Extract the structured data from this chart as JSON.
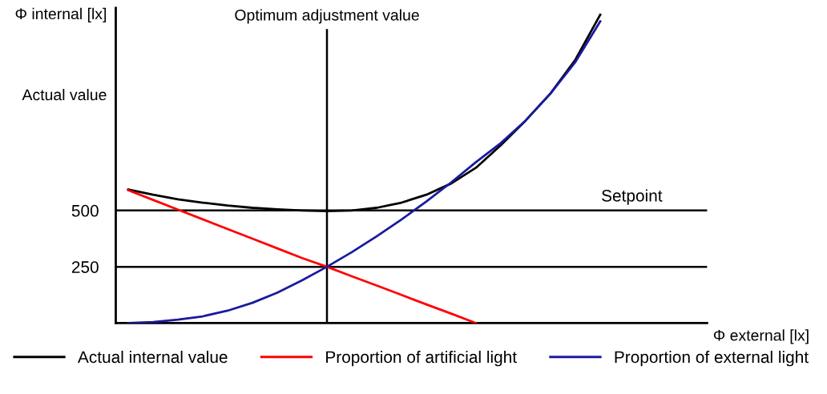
{
  "chart_data": {
    "type": "line",
    "ylabel": "Φ internal [lx]",
    "categories": [
      null,
      null,
      null,
      null,
      null,
      null,
      null,
      null,
      null,
      null,
      null,
      null,
      null,
      null,
      null,
      null,
      null,
      null,
      null,
      null
    ],
    "series": [
      {
        "name": "Actual internal value",
        "color": "#000000",
        "values": [
          593,
          570,
          550,
          535,
          522,
          512,
          505,
          500,
          497,
          500,
          512,
          535,
          570,
          620,
          690,
          790,
          900,
          1020,
          1170,
          1370
        ]
      },
      {
        "name": "Proportion of artificial light",
        "color": "#ff0000",
        "values": [
          590,
          547,
          504,
          461,
          418,
          375,
          332,
          289,
          250,
          208,
          167,
          125,
          83,
          42,
          0,
          null,
          null,
          null,
          null,
          null
        ]
      },
      {
        "name": "Proportion of external light",
        "color": "#1a1aa0",
        "values": [
          0,
          5,
          15,
          30,
          55,
          90,
          135,
          190,
          250,
          315,
          385,
          460,
          540,
          625,
          715,
          800,
          900,
          1020,
          1160,
          1340
        ]
      }
    ],
    "ylim": [
      0,
      1400
    ],
    "yticks": [
      250,
      500
    ],
    "ref_lines": [
      {
        "axis": "y",
        "value": 500,
        "label": "Setpoint",
        "color": "#000000"
      },
      {
        "axis": "y",
        "value": 250,
        "label": null,
        "color": "#000000"
      }
    ],
    "annotations": [
      "Actual value",
      "Optimum adjustment value",
      "Φ external [lx]"
    ],
    "legend": "bottom",
    "grid": false,
    "marker": "none",
    "line_style": "solid"
  }
}
